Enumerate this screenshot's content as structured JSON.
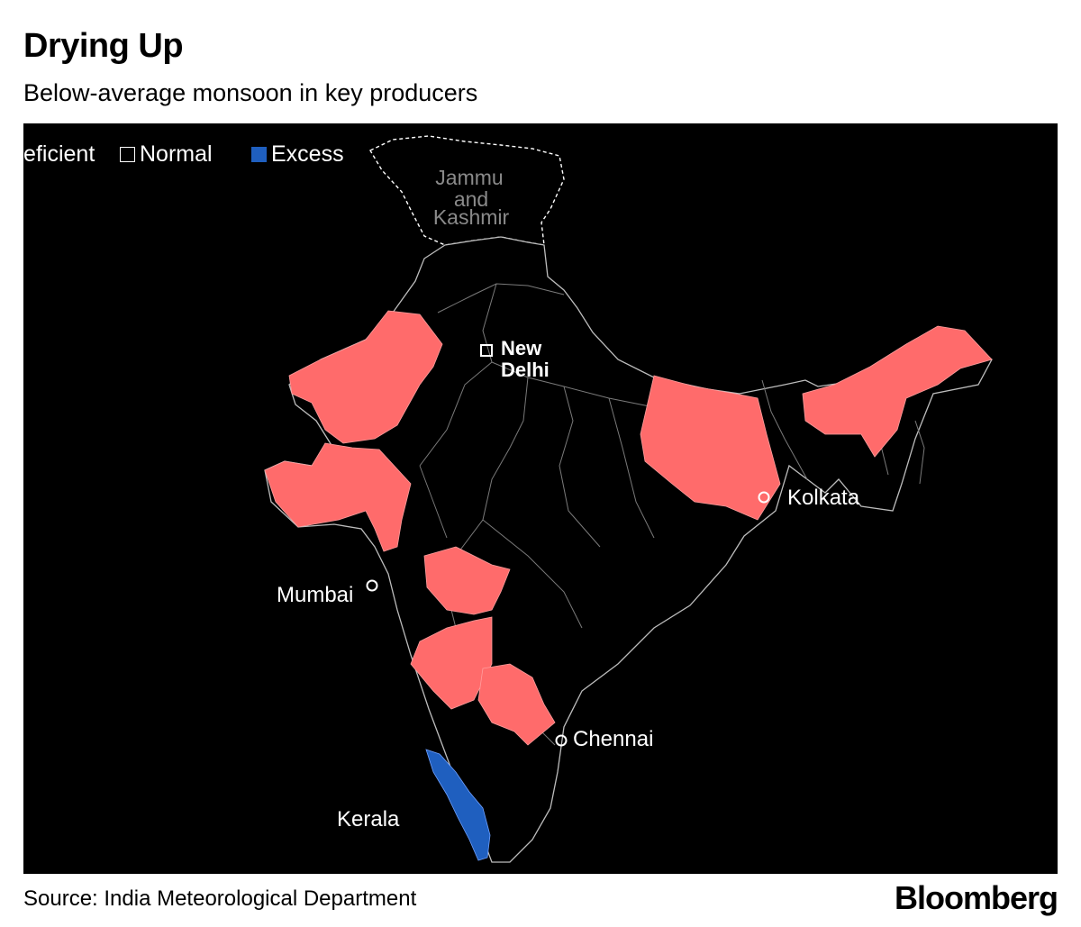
{
  "header": {
    "title": "Drying Up",
    "subtitle": "Below-average monsoon in key producers"
  },
  "legend": {
    "items": [
      {
        "label": "Deficient",
        "color": "#ff6b6b"
      },
      {
        "label": "Normal",
        "color": "#000000"
      },
      {
        "label": "Excess",
        "color": "#1f5fbf"
      }
    ]
  },
  "map": {
    "background": "#000000",
    "region_labels": {
      "jammu_kashmir": [
        "Jammu",
        "and",
        "Kashmir"
      ],
      "kerala": "Kerala"
    },
    "capital": {
      "name_lines": [
        "New",
        "Delhi"
      ]
    },
    "cities": [
      {
        "name": "Kolkata"
      },
      {
        "name": "Mumbai"
      },
      {
        "name": "Chennai"
      }
    ]
  },
  "footer": {
    "source": "Source: India Meteorological Department",
    "brand": "Bloomberg"
  }
}
